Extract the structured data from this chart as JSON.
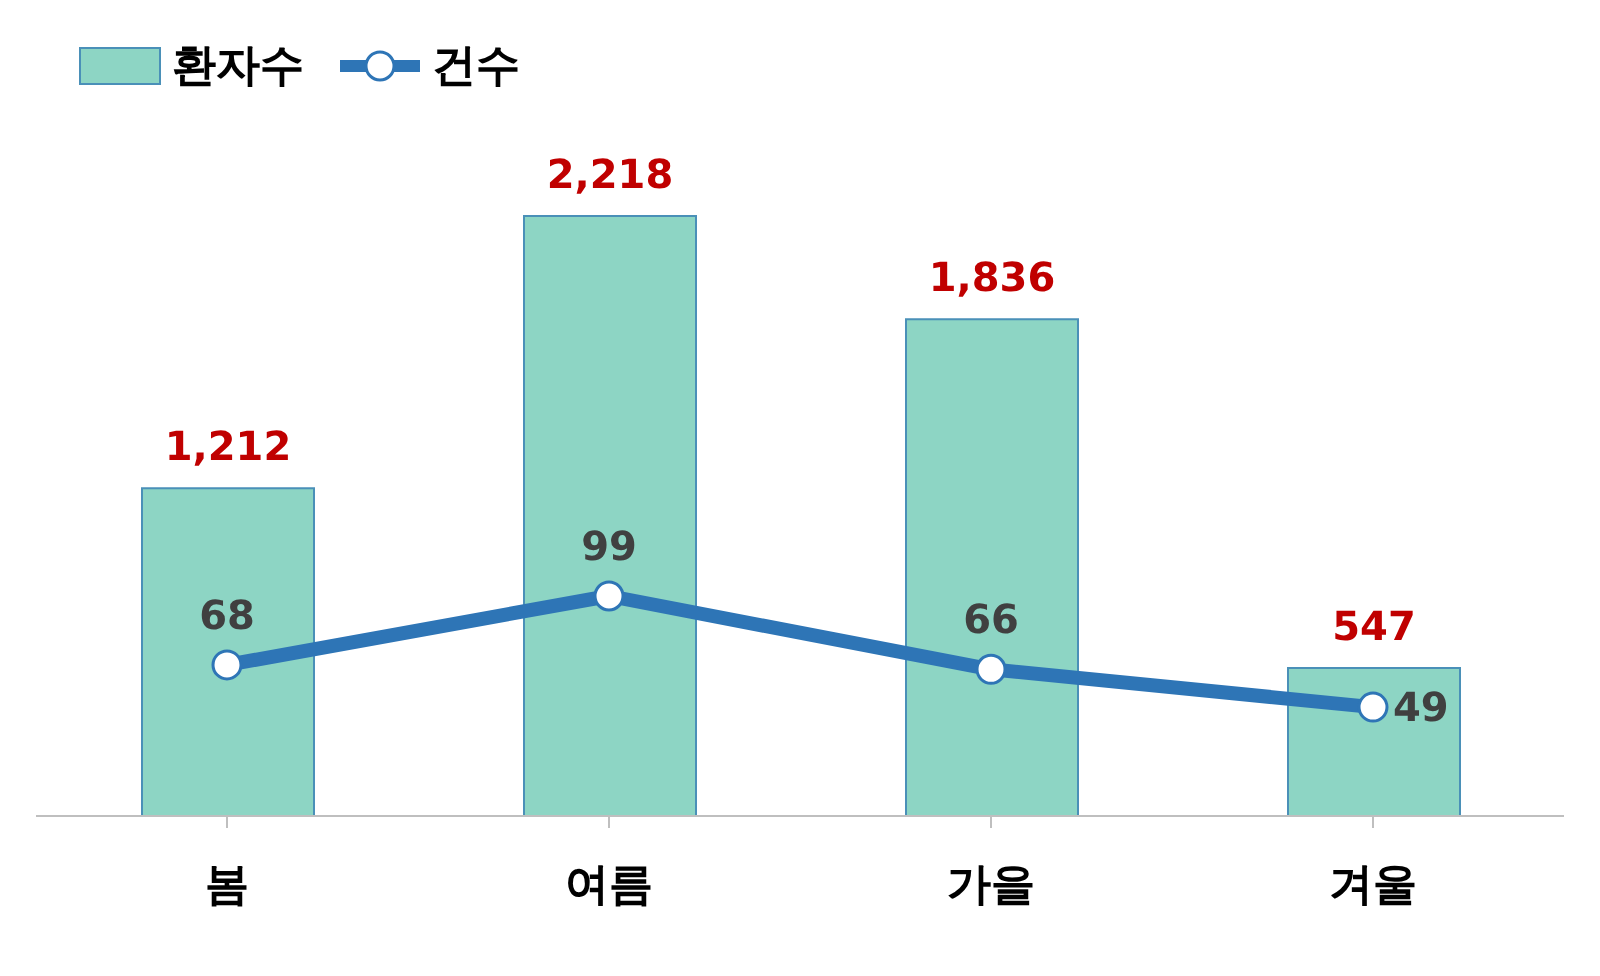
{
  "chart_data": {
    "type": "bar",
    "categories": [
      "봄",
      "여름",
      "가을",
      "겨울"
    ],
    "series": [
      {
        "name": "환자수",
        "color": "#8dd5c4",
        "values": [
          1212,
          2218,
          1836,
          547
        ],
        "value_labels": [
          "1,212",
          "2,218",
          "1,836",
          "547"
        ]
      },
      {
        "name": "건수",
        "type": "line",
        "axis": "y2",
        "color": "#2e75b6",
        "values": [
          68,
          99,
          66,
          49
        ]
      }
    ],
    "tick_labels": "x",
    "data_labels": true,
    "legend": "top left",
    "marker": "circle"
  }
}
